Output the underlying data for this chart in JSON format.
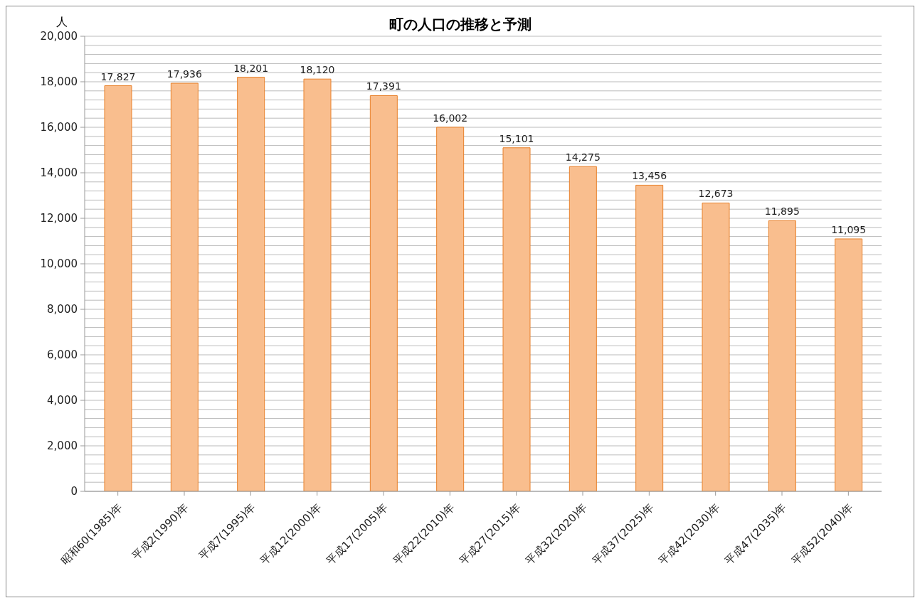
{
  "chart_data": {
    "type": "bar",
    "title": "町の人口の推移と予測",
    "ylabel": "人",
    "categories": [
      "昭和60(1985)年",
      "平成2(1990)年",
      "平成7(1995)年",
      "平成12(2000)年",
      "平成17(2005)年",
      "平成22(2010)年",
      "平成27(2015)年",
      "平成32(2020)年",
      "平成37(2025)年",
      "平成42(2030)年",
      "平成47(2035)年",
      "平成52(2040)年"
    ],
    "values": [
      17827,
      17936,
      18201,
      18120,
      17391,
      16002,
      15101,
      14275,
      13456,
      12673,
      11895,
      11095
    ],
    "color": "#f9be8e",
    "value_labels": [
      "17,827",
      "17,936",
      "18,201",
      "18,120",
      "17,391",
      "16,002",
      "15,101",
      "14,275",
      "13,456",
      "12,673",
      "11,895",
      "11,095"
    ],
    "ylim": [
      0,
      20000
    ],
    "yticks": [
      0,
      {
        "value": 400,
        "label": null
      },
      {
        "value": 800,
        "label": null
      },
      {
        "value": 1200,
        "label": null
      },
      {
        "value": 1600,
        "label": null
      },
      {
        "value": 2000,
        "label": "2,000"
      },
      {
        "value": 2400,
        "label": null
      },
      {
        "value": 2800,
        "label": null
      },
      {
        "value": 3200,
        "label": null
      },
      {
        "value": 3600,
        "label": null
      },
      {
        "value": 4000,
        "label": "4,000"
      },
      {
        "value": 4400,
        "label": null
      },
      {
        "value": 4800,
        "label": null
      },
      {
        "value": 5200,
        "label": null
      },
      {
        "value": 5600,
        "label": null
      },
      {
        "value": 6000,
        "label": "6,000"
      },
      {
        "value": 6400,
        "label": null
      },
      {
        "value": 6800,
        "label": null
      },
      {
        "value": 7200,
        "label": null
      },
      {
        "value": 7600,
        "label": null
      },
      {
        "value": 8000,
        "label": "8,000"
      },
      {
        "value": 8400,
        "label": null
      },
      {
        "value": 8800,
        "label": null
      },
      {
        "value": 9200,
        "label": null
      },
      {
        "value": 9600,
        "label": null
      },
      {
        "value": 10000,
        "label": "10,000"
      },
      {
        "value": 10400,
        "label": null
      },
      {
        "value": 10800,
        "label": null
      },
      {
        "value": 11200,
        "label": null
      },
      {
        "value": 11600,
        "label": null
      },
      {
        "value": 12000,
        "label": "12,000"
      },
      {
        "value": 12400,
        "label": null
      },
      {
        "value": 12800,
        "label": null
      },
      {
        "value": 13200,
        "label": null
      },
      {
        "value": 13600,
        "label": null
      },
      {
        "value": 14000,
        "label": "14,000"
      },
      {
        "value": 14400,
        "label": null
      },
      {
        "value": 14800,
        "label": null
      },
      {
        "value": 15200,
        "label": null
      },
      {
        "value": 15600,
        "label": null
      },
      {
        "value": 16000,
        "label": "16,000"
      },
      {
        "value": 16400,
        "label": null
      },
      {
        "value": 16800,
        "label": null
      },
      {
        "value": 17200,
        "label": null
      },
      {
        "value": 17600,
        "label": null
      },
      {
        "value": 18000,
        "label": "18,000"
      },
      {
        "value": 18400,
        "label": null
      },
      {
        "value": 18800,
        "label": null
      },
      {
        "value": 19200,
        "label": null
      },
      {
        "value": 19600,
        "label": null
      },
      {
        "value": 20000,
        "label": "20,000"
      }
    ],
    "grid": "y",
    "legend": false
  }
}
